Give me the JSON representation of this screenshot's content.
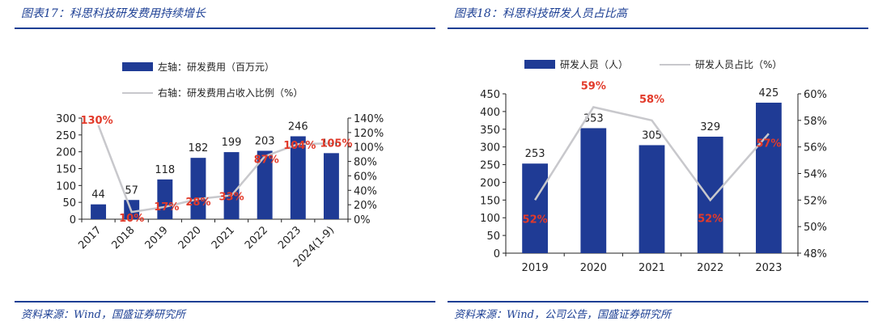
{
  "colors": {
    "accent": "#1c3f94",
    "bar": "#1f3b95",
    "line": "#c8c8cc",
    "pct": "#e23a2a"
  },
  "left": {
    "title": "图表17：科思科技研发费用持续增长",
    "source": "资料来源：Wind，国盛证券研究所"
  },
  "right": {
    "title": "图表18：科思科技研发人员占比高",
    "source": "资料来源：Wind，公司公告，国盛证券研究所"
  },
  "chart_data": [
    {
      "type": "bar",
      "categories": [
        "2017",
        "2018",
        "2019",
        "2020",
        "2021",
        "2022",
        "2023",
        "2024(1-9)"
      ],
      "series": [
        {
          "name": "左轴：研发费用（百万元）",
          "type": "bar",
          "axis": "left",
          "values": [
            44,
            57,
            118,
            182,
            199,
            203,
            246,
            196
          ]
        },
        {
          "name": "右轴：研发费用占收入比例（%）",
          "type": "line",
          "axis": "right",
          "values": [
            130,
            10,
            17,
            28,
            33,
            87,
            104,
            105
          ],
          "labels": [
            "130%",
            "10%",
            "17%",
            "28%",
            "33%",
            "87%",
            "104%",
            "105%"
          ]
        }
      ],
      "ylim_left": [
        0,
        300
      ],
      "yticks_left": [
        "0",
        "50",
        "100",
        "150",
        "200",
        "250",
        "300"
      ],
      "ylim_right": [
        0,
        140
      ],
      "yticks_right": [
        "0%",
        "20%",
        "40%",
        "60%",
        "80%",
        "100%",
        "120%",
        "140%"
      ],
      "legend_position": "top-center",
      "grid": false
    },
    {
      "type": "bar",
      "categories": [
        "2019",
        "2020",
        "2021",
        "2022",
        "2023"
      ],
      "series": [
        {
          "name": "研发人员（人）",
          "type": "bar",
          "axis": "left",
          "values": [
            253,
            353,
            305,
            329,
            425
          ]
        },
        {
          "name": "研发人员占比（%）",
          "type": "line",
          "axis": "right",
          "values": [
            52,
            59,
            58,
            52,
            57
          ],
          "labels": [
            "52%",
            "59%",
            "58%",
            "52%",
            "57%"
          ]
        }
      ],
      "ylim_left": [
        0,
        450
      ],
      "yticks_left": [
        "0",
        "50",
        "100",
        "150",
        "200",
        "250",
        "300",
        "350",
        "400",
        "450"
      ],
      "ylim_right": [
        48,
        60
      ],
      "yticks_right": [
        "48%",
        "50%",
        "52%",
        "54%",
        "56%",
        "58%",
        "60%"
      ],
      "legend_position": "top-center",
      "grid": false
    }
  ]
}
